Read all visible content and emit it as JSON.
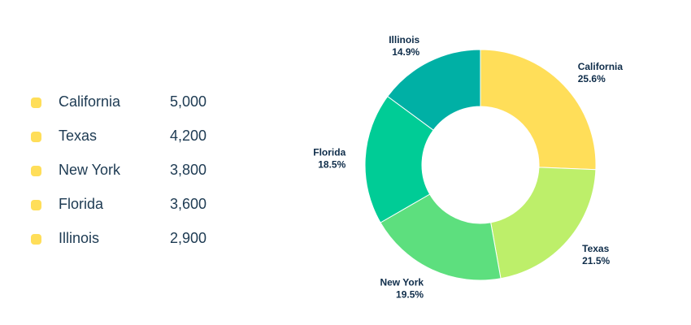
{
  "legend": {
    "items": [
      {
        "label": "California",
        "value": "5,000"
      },
      {
        "label": "Texas",
        "value": "4,200"
      },
      {
        "label": "New York",
        "value": "3,800"
      },
      {
        "label": "Florida",
        "value": "3,600"
      },
      {
        "label": "Illinois",
        "value": "2,900"
      }
    ],
    "dot_color": "#ffde59"
  },
  "chart_data": {
    "type": "pie",
    "categories": [
      "California",
      "Texas",
      "New York",
      "Florida",
      "Illinois"
    ],
    "values": [
      5000,
      4200,
      3800,
      3600,
      2900
    ],
    "percent_labels": [
      "25.6%",
      "21.5%",
      "19.5%",
      "18.5%",
      "14.9%"
    ],
    "colors": [
      "#ffde59",
      "#bdef6a",
      "#5ddf7e",
      "#00cc96",
      "#00b0a5"
    ],
    "title": "",
    "donut": true,
    "legend": "left"
  }
}
